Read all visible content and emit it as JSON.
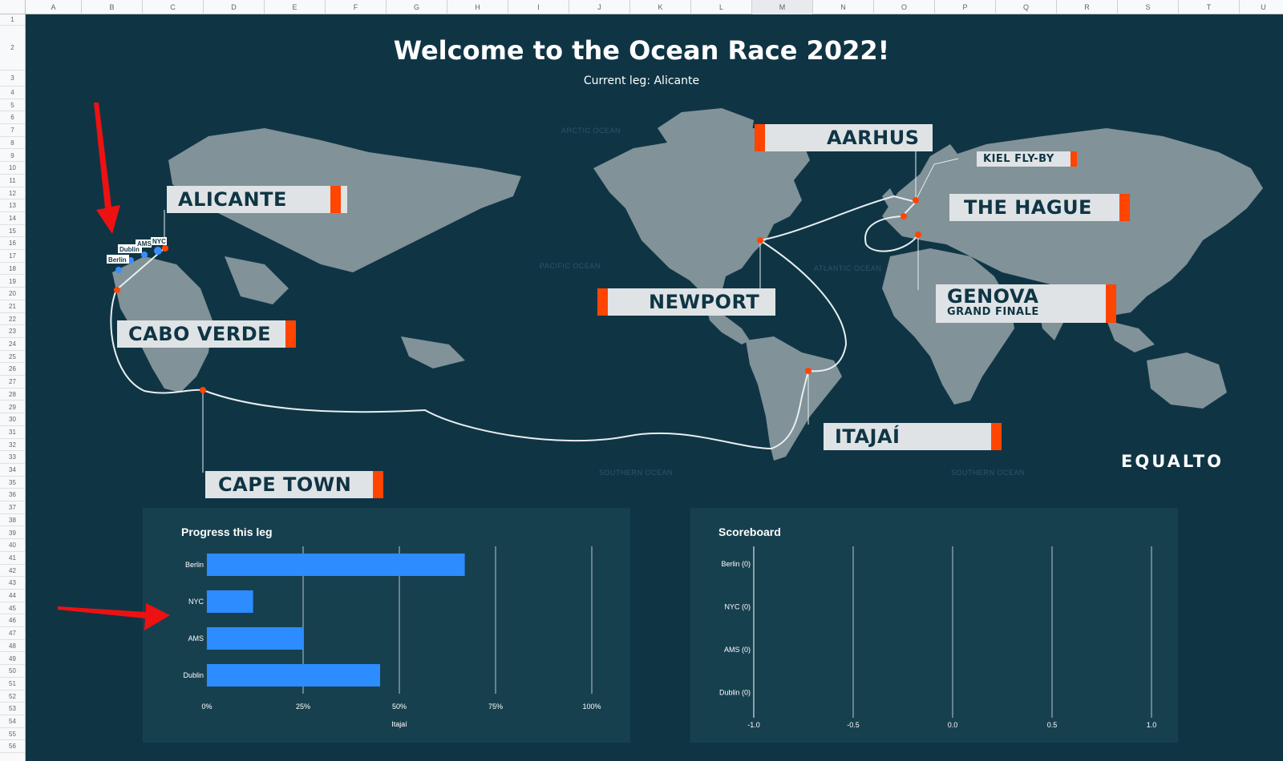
{
  "sheet": {
    "columns": [
      "A",
      "B",
      "C",
      "D",
      "E",
      "F",
      "G",
      "H",
      "I",
      "J",
      "K",
      "L",
      "M",
      "N",
      "O",
      "P",
      "Q",
      "R",
      "S",
      "T",
      "U"
    ],
    "selected_column": "M",
    "rows": [
      "1",
      "2",
      "3",
      "4",
      "5",
      "6",
      "7",
      "8",
      "9",
      "10",
      "11",
      "12",
      "13",
      "14",
      "15",
      "16",
      "17",
      "18",
      "19",
      "20",
      "21",
      "22",
      "23",
      "24",
      "25",
      "26",
      "27",
      "28",
      "29",
      "30",
      "31",
      "32",
      "33",
      "34",
      "35",
      "36",
      "37",
      "38",
      "39",
      "40",
      "41",
      "42",
      "43",
      "44",
      "45",
      "46",
      "47",
      "48",
      "49",
      "50",
      "51",
      "52",
      "53",
      "54",
      "55",
      "56"
    ]
  },
  "header": {
    "title": "Welcome to the Ocean Race 2022!",
    "subtitle": "Current leg: Alicante"
  },
  "map": {
    "ocean_labels": {
      "arctic": "ARCTIC OCEAN",
      "pacific": "PACIFIC OCEAN",
      "atlantic": "ATLANTIC OCEAN",
      "southern_1": "SOUTHERN OCEAN",
      "southern_2": "SOUTHERN OCEAN"
    },
    "stops": {
      "alicante": "ALICANTE",
      "cabo_verde": "CABO VERDE",
      "cape_town": "CAPE TOWN",
      "itajai": "ITAJAÍ",
      "newport": "NEWPORT",
      "aarhus": "AARHUS",
      "kiel": "KIEL FLY-BY",
      "the_hague": "THE HAGUE",
      "genova": "GENOVA",
      "genova_sub": "GRAND FINALE"
    },
    "boats": {
      "berlin": "Berlin",
      "dublin": "Dublin",
      "ams": "AMS",
      "nyc": "NYC"
    },
    "logo": "EQUALTO"
  },
  "progress_chart": {
    "title": "Progress this leg",
    "chart_data": {
      "type": "bar",
      "orientation": "horizontal",
      "title": "Progress this leg",
      "categories": [
        "Berlin",
        "NYC",
        "AMS",
        "Dublin"
      ],
      "values": [
        0.67,
        0.12,
        0.25,
        0.45
      ],
      "xlabel": "Itajaí",
      "xlim": [
        0,
        1
      ],
      "ticks": [
        "0%",
        "25%",
        "50%",
        "75%",
        "100%"
      ],
      "color": "#2d8cff",
      "grid": true
    }
  },
  "scoreboard": {
    "title": "Scoreboard",
    "chart_data": {
      "type": "bar",
      "orientation": "horizontal",
      "title": "Scoreboard",
      "categories": [
        "Berlin (0)",
        "NYC (0)",
        "AMS (0)",
        "Dublin (0)"
      ],
      "values": [
        0,
        0,
        0,
        0
      ],
      "xlim": [
        -1,
        1
      ],
      "ticks": [
        "-1.0",
        "-0.5",
        "0.0",
        "0.5",
        "1.0"
      ],
      "grid": true
    }
  },
  "colors": {
    "background": "#0f3545",
    "panel": "#17404f",
    "accent": "#ff4500",
    "land": "#8b9aa0",
    "bar": "#2d8cff",
    "annotation_arrow": "#ee1111"
  }
}
